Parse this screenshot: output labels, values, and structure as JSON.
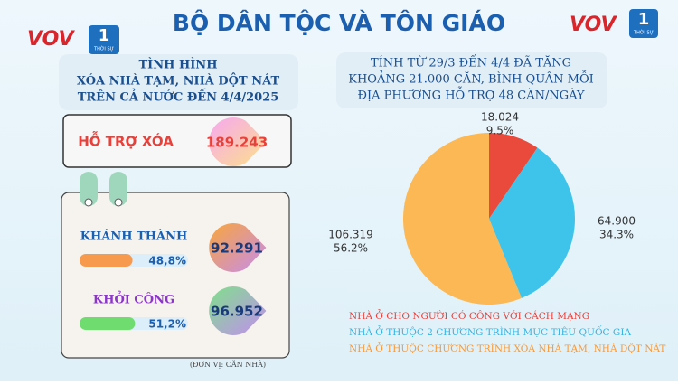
{
  "header": {
    "title": "BỘ DÂN TỘC VÀ TÔN GIÁO",
    "logo_text": "VOV",
    "logo_channel": "1",
    "logo_sub": "THỜI SỰ"
  },
  "left": {
    "heading": [
      "TÌNH HÌNH",
      "XÓA NHÀ TẠM, NHÀ DỘT NÁT",
      "TRÊN CẢ NƯỚC ĐẾN 4/4/2025"
    ],
    "total": {
      "label": "HỖ TRỢ XÓA",
      "value_text": "189.243"
    },
    "items": [
      {
        "label": "KHÁNH THÀNH",
        "value_text": "92.291",
        "progress": 48.8,
        "progress_label": "48,8%",
        "color": "#f79a4e"
      },
      {
        "label": "KHỞI CÔNG",
        "value_text": "96.952",
        "progress": 51.2,
        "progress_label": "51,2%",
        "color": "#6fdc6f"
      }
    ],
    "unit_note": "(ĐƠN VỊ: CĂN NHÀ)"
  },
  "chart_data": {
    "type": "pie",
    "title_lines": [
      "TÍNH TỪ 29/3 ĐẾN 4/4 ĐÃ TĂNG",
      "KHOẢNG 21.000 CĂN, BÌNH QUÂN MỖI",
      "ĐỊA PHƯƠNG HỖ TRỢ 48 CĂN/NGÀY"
    ],
    "categories": [
      "NHÀ Ở CHO NGƯỜI CÓ CÔNG VỚI CÁCH MẠNG",
      "NHÀ Ở THUỘC 2 CHƯƠNG TRÌNH MỤC TIÊU QUỐC GIA",
      "NHÀ Ở THUỘC CHƯƠNG TRÌNH XÓA NHÀ TẠM, NHÀ DỘT NÁT"
    ],
    "values": [
      18024,
      64900,
      106319
    ],
    "value_labels": [
      "18.024",
      "64.900",
      "106.319"
    ],
    "percent_labels": [
      "9.5%",
      "34.3%",
      "56.2%"
    ],
    "colors": [
      "#ea4a3c",
      "#3ec4ea",
      "#fbb855"
    ],
    "legend_colors": [
      "#e8403a",
      "#35b3de",
      "#f59a3b"
    ]
  }
}
